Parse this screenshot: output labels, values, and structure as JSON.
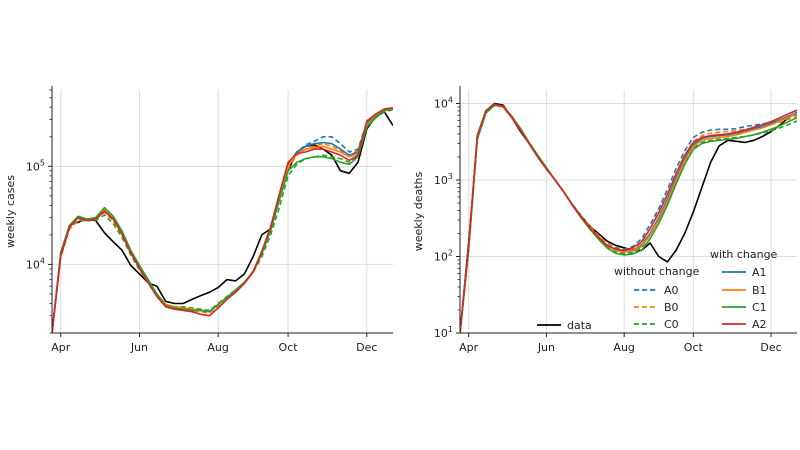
{
  "colors": {
    "data": "#000000",
    "A": "#1f77b4",
    "B": "#ff7f0e",
    "C": "#2ca02c",
    "A2": "#d62728",
    "grid": "#dddddd",
    "axis": "#222222"
  },
  "chart_data": [
    {
      "type": "line",
      "ylabel": "weekly cases",
      "yscale": "log",
      "ylim": [
        2000,
        600000
      ],
      "xlim": [
        0,
        39
      ],
      "x_ticks": [
        {
          "x": 1,
          "label": "Apr"
        },
        {
          "x": 10,
          "label": "Jun"
        },
        {
          "x": 19,
          "label": "Aug"
        },
        {
          "x": 27,
          "label": "Oct"
        },
        {
          "x": 36,
          "label": "Dec"
        }
      ],
      "y_ticks": [
        {
          "value": 10000,
          "base": "10",
          "exp": "4"
        },
        {
          "value": 100000,
          "base": "10",
          "exp": "5"
        }
      ],
      "grid": true,
      "series": [
        {
          "name": "data",
          "style": "solid",
          "color_key": "data",
          "values": [
            2000,
            13000,
            25000,
            27000,
            29000,
            28000,
            21000,
            17000,
            14000,
            9800,
            8000,
            6500,
            6000,
            4200,
            4000,
            4000,
            4400,
            4800,
            5200,
            5800,
            7000,
            6800,
            8000,
            12000,
            20000,
            23000,
            47000,
            90000,
            140000,
            160000,
            165000,
            150000,
            130000,
            90000,
            85000,
            110000,
            240000,
            320000,
            360000,
            260000
          ]
        },
        {
          "name": "A0",
          "style": "dashed",
          "color_key": "A",
          "values": [
            2000,
            12000,
            23000,
            28000,
            28000,
            29000,
            34000,
            28000,
            20000,
            13000,
            9000,
            6500,
            4800,
            3800,
            3600,
            3500,
            3400,
            3300,
            3200,
            3800,
            4500,
            5300,
            6400,
            8400,
            13000,
            23000,
            47000,
            100000,
            140000,
            165000,
            180000,
            200000,
            200000,
            170000,
            140000,
            150000,
            280000,
            330000,
            380000,
            390000
          ]
        },
        {
          "name": "B0",
          "style": "dashed",
          "color_key": "B",
          "values": [
            2000,
            12000,
            23000,
            28000,
            28000,
            29000,
            34000,
            28000,
            20000,
            13000,
            9000,
            6500,
            4800,
            3800,
            3600,
            3500,
            3400,
            3300,
            3200,
            3800,
            4500,
            5300,
            6400,
            8400,
            13000,
            23000,
            45000,
            95000,
            130000,
            150000,
            160000,
            170000,
            160000,
            145000,
            130000,
            145000,
            270000,
            325000,
            375000,
            385000
          ]
        },
        {
          "name": "C0",
          "style": "dashed",
          "color_key": "C",
          "values": [
            2000,
            12000,
            24000,
            29000,
            28000,
            28000,
            32000,
            26000,
            19000,
            12500,
            8800,
            6500,
            4900,
            3900,
            3700,
            3700,
            3600,
            3500,
            3400,
            4000,
            4700,
            5500,
            6500,
            8300,
            12000,
            20000,
            38000,
            80000,
            105000,
            120000,
            125000,
            130000,
            125000,
            120000,
            110000,
            130000,
            250000,
            310000,
            360000,
            380000
          ]
        },
        {
          "name": "A1",
          "style": "solid",
          "color_key": "A",
          "values": [
            2000,
            12500,
            24000,
            30000,
            28500,
            29500,
            36000,
            29500,
            21000,
            13500,
            9400,
            6800,
            5000,
            3900,
            3700,
            3600,
            3500,
            3400,
            3300,
            3900,
            4600,
            5400,
            6500,
            8500,
            13500,
            24000,
            50000,
            105000,
            140000,
            160000,
            170000,
            175000,
            170000,
            150000,
            130000,
            140000,
            280000,
            330000,
            380000,
            390000
          ]
        },
        {
          "name": "B1",
          "style": "solid",
          "color_key": "B",
          "values": [
            2000,
            12500,
            24000,
            30000,
            28500,
            29500,
            36000,
            29500,
            21000,
            13500,
            9400,
            6800,
            5000,
            3900,
            3700,
            3600,
            3500,
            3400,
            3300,
            3900,
            4600,
            5400,
            6500,
            8500,
            13500,
            24000,
            48000,
            100000,
            135000,
            150000,
            155000,
            160000,
            150000,
            140000,
            125000,
            135000,
            260000,
            330000,
            375000,
            390000
          ]
        },
        {
          "name": "C1",
          "style": "solid",
          "color_key": "C",
          "values": [
            2000,
            12500,
            25000,
            31000,
            29000,
            30000,
            38000,
            31000,
            22000,
            14000,
            9800,
            7000,
            5000,
            3800,
            3600,
            3500,
            3400,
            3400,
            3300,
            3900,
            4600,
            5500,
            6600,
            8400,
            13000,
            22000,
            45000,
            90000,
            110000,
            120000,
            125000,
            125000,
            120000,
            110000,
            105000,
            125000,
            250000,
            320000,
            370000,
            385000
          ]
        },
        {
          "name": "A2",
          "style": "solid",
          "color_key": "A2",
          "values": [
            2000,
            12000,
            24000,
            30000,
            28000,
            29000,
            35000,
            29000,
            20500,
            13200,
            9200,
            6500,
            4700,
            3700,
            3500,
            3400,
            3300,
            3100,
            3000,
            3600,
            4400,
            5200,
            6400,
            8400,
            13500,
            24000,
            52000,
            110000,
            135000,
            140000,
            150000,
            150000,
            140000,
            130000,
            115000,
            130000,
            290000,
            340000,
            385000,
            395000
          ]
        }
      ]
    },
    {
      "type": "line",
      "ylabel": "weekly deaths",
      "yscale": "log",
      "ylim": [
        10,
        15000
      ],
      "xlim": [
        0,
        39
      ],
      "x_ticks": [
        {
          "x": 1,
          "label": "Apr"
        },
        {
          "x": 10,
          "label": "Jun"
        },
        {
          "x": 19,
          "label": "Aug"
        },
        {
          "x": 27,
          "label": "Oct"
        },
        {
          "x": 36,
          "label": "Dec"
        }
      ],
      "y_ticks": [
        {
          "value": 10,
          "base": "10",
          "exp": "1"
        },
        {
          "value": 100,
          "base": "10",
          "exp": "2"
        },
        {
          "value": 1000,
          "base": "10",
          "exp": "3"
        },
        {
          "value": 10000,
          "base": "10",
          "exp": "4"
        }
      ],
      "grid": true,
      "legend": {
        "position": "bottom-right",
        "data_label": "data",
        "without_change_title": "without change",
        "with_change_title": "with change",
        "without_change": [
          "A0",
          "B0",
          "C0"
        ],
        "with_change": [
          "A1",
          "B1",
          "C1",
          "A2"
        ]
      },
      "series": [
        {
          "name": "data",
          "style": "solid",
          "color_key": "data",
          "values": [
            10,
            150,
            3500,
            8000,
            10000,
            9500,
            6500,
            4300,
            3000,
            2000,
            1400,
            1000,
            700,
            480,
            340,
            250,
            200,
            160,
            140,
            130,
            120,
            120,
            150,
            100,
            85,
            120,
            200,
            380,
            800,
            1700,
            2800,
            3300,
            3200,
            3100,
            3300,
            3700,
            4300,
            5200,
            6500,
            7700
          ]
        },
        {
          "name": "A0",
          "style": "dashed",
          "color_key": "A",
          "values": [
            10,
            130,
            3800,
            8000,
            9500,
            9000,
            6500,
            4500,
            3000,
            2000,
            1400,
            1000,
            700,
            480,
            340,
            250,
            190,
            150,
            130,
            125,
            135,
            170,
            260,
            420,
            750,
            1400,
            2400,
            3600,
            4200,
            4500,
            4600,
            4600,
            4700,
            5000,
            5200,
            5400,
            5700,
            6100,
            6600,
            7200
          ]
        },
        {
          "name": "B0",
          "style": "dashed",
          "color_key": "B",
          "values": [
            10,
            130,
            3800,
            8000,
            9500,
            9000,
            6500,
            4500,
            3000,
            2000,
            1400,
            1000,
            700,
            480,
            340,
            250,
            190,
            150,
            125,
            120,
            125,
            150,
            230,
            380,
            650,
            1200,
            2100,
            3200,
            3800,
            4100,
            4200,
            4300,
            4400,
            4600,
            4800,
            5000,
            5300,
            5700,
            6200,
            6800
          ]
        },
        {
          "name": "C0",
          "style": "dashed",
          "color_key": "C",
          "values": [
            10,
            120,
            3400,
            7500,
            9500,
            9200,
            6800,
            4700,
            3100,
            2100,
            1450,
            1000,
            700,
            480,
            330,
            240,
            175,
            135,
            115,
            110,
            112,
            130,
            190,
            300,
            520,
            950,
            1700,
            2600,
            3100,
            3300,
            3400,
            3500,
            3600,
            3700,
            3900,
            4100,
            4400,
            4800,
            5300,
            5900
          ]
        },
        {
          "name": "A1",
          "style": "solid",
          "color_key": "A",
          "values": [
            10,
            130,
            3800,
            8000,
            9500,
            9000,
            6500,
            4500,
            3000,
            2000,
            1400,
            1000,
            700,
            470,
            330,
            240,
            180,
            140,
            120,
            115,
            120,
            140,
            200,
            320,
            560,
            1050,
            1900,
            2900,
            3500,
            3700,
            3800,
            3900,
            4100,
            4400,
            4700,
            5000,
            5500,
            6100,
            6800,
            7600
          ]
        },
        {
          "name": "B1",
          "style": "solid",
          "color_key": "B",
          "values": [
            10,
            130,
            3800,
            8000,
            9500,
            9000,
            6500,
            4500,
            3000,
            2000,
            1400,
            1000,
            700,
            470,
            330,
            240,
            180,
            140,
            120,
            114,
            118,
            135,
            190,
            300,
            520,
            980,
            1800,
            2750,
            3300,
            3500,
            3600,
            3700,
            3900,
            4200,
            4500,
            4800,
            5300,
            5900,
            6600,
            7400
          ]
        },
        {
          "name": "C1",
          "style": "solid",
          "color_key": "C",
          "values": [
            10,
            120,
            3400,
            7500,
            9500,
            9200,
            6800,
            4700,
            3100,
            2100,
            1450,
            1000,
            700,
            470,
            320,
            230,
            170,
            130,
            110,
            105,
            108,
            120,
            170,
            270,
            470,
            880,
            1600,
            2500,
            3000,
            3200,
            3300,
            3400,
            3500,
            3700,
            3900,
            4200,
            4600,
            5100,
            5800,
            6500
          ]
        },
        {
          "name": "A2",
          "style": "solid",
          "color_key": "A2",
          "values": [
            10,
            130,
            3800,
            8000,
            9800,
            9200,
            6600,
            4500,
            3000,
            2000,
            1400,
            1000,
            700,
            470,
            330,
            240,
            180,
            140,
            125,
            120,
            130,
            155,
            230,
            370,
            650,
            1200,
            2100,
            3100,
            3600,
            3800,
            3900,
            4000,
            4200,
            4500,
            4900,
            5300,
            5800,
            6500,
            7300,
            8200
          ]
        }
      ]
    }
  ]
}
